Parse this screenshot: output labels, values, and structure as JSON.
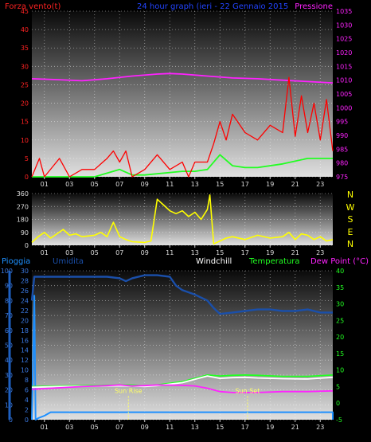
{
  "chart_data": [
    {
      "type": "line",
      "title": "24 hour graph (ieri - 22 Gennaio 2015",
      "left_label": "Forza vento(t)",
      "right_label": "Pressione",
      "left_ylim": [
        0,
        45
      ],
      "left_ticks": [
        0,
        5,
        10,
        15,
        20,
        25,
        30,
        35,
        40,
        45
      ],
      "right_ylim": [
        975,
        1035
      ],
      "right_ticks": [
        975,
        980,
        985,
        990,
        995,
        1000,
        1005,
        1010,
        1015,
        1020,
        1025,
        1030,
        1035
      ],
      "x_ticks": [
        "01",
        "03",
        "05",
        "07",
        "09",
        "11",
        "13",
        "15",
        "17",
        "19",
        "21",
        "23"
      ],
      "xlim": [
        0,
        24
      ],
      "grid": true,
      "series": [
        {
          "key": "pressure",
          "axis": "right",
          "color": "#ff22ff",
          "x": [
            0,
            2,
            4,
            6,
            8,
            10,
            11,
            12,
            14,
            16,
            18,
            20,
            22,
            24
          ],
          "y": [
            1010.5,
            1010.2,
            1009.8,
            1010.5,
            1011.5,
            1012.2,
            1012.4,
            1012.2,
            1011.5,
            1010.8,
            1010.5,
            1010,
            1009.5,
            1009
          ]
        },
        {
          "key": "wind_avg",
          "axis": "left",
          "color": "#22ff22",
          "x": [
            0,
            5,
            6,
            7,
            8,
            9,
            12,
            13,
            14,
            15,
            16,
            17,
            18,
            20,
            22,
            24
          ],
          "y": [
            0,
            0,
            1,
            2,
            0.5,
            0.5,
            1.5,
            1.5,
            2,
            6,
            3,
            2.5,
            2.5,
            3.5,
            5,
            5
          ]
        },
        {
          "key": "wind_gust",
          "axis": "left",
          "color": "#ff0000",
          "x": [
            0,
            0.6,
            1,
            2.2,
            3,
            4,
            5,
            6,
            6.5,
            7,
            7.5,
            8,
            9,
            10,
            11,
            12,
            12.5,
            13,
            14,
            14.5,
            15,
            15.5,
            16,
            17,
            18,
            19,
            20,
            20.5,
            21,
            21.5,
            22,
            22.5,
            23,
            23.5,
            24
          ],
          "y": [
            0,
            5,
            0,
            5,
            0,
            2,
            2,
            5,
            7,
            4,
            7,
            0,
            2,
            6,
            2,
            4,
            0,
            4,
            4,
            9,
            15,
            10,
            17,
            12,
            10,
            14,
            12,
            27,
            11,
            22,
            12,
            20,
            10,
            21,
            7
          ]
        }
      ]
    },
    {
      "type": "line",
      "title": "",
      "ylim": [
        0,
        360
      ],
      "y_ticks": [
        0,
        90,
        180,
        270,
        360
      ],
      "compass": [
        "N",
        "W",
        "S",
        "E",
        "N"
      ],
      "x_ticks": [
        "01",
        "03",
        "05",
        "07",
        "09",
        "11",
        "13",
        "15",
        "17",
        "19",
        "21",
        "23"
      ],
      "xlim": [
        0,
        24
      ],
      "grid": true,
      "series": [
        {
          "key": "wind_direction",
          "color": "#ffff00",
          "x": [
            0,
            0.5,
            1,
            1.5,
            2,
            2.5,
            3,
            3.5,
            4,
            5,
            5.5,
            6,
            6.5,
            7,
            7.5,
            8,
            9,
            9.5,
            10,
            10.5,
            11,
            11.5,
            12,
            12.5,
            13,
            13.5,
            14,
            14.2,
            14.5,
            15,
            15.5,
            16,
            17,
            18,
            19,
            20,
            20.5,
            21,
            21.5,
            22,
            22.5,
            23,
            23.5,
            24
          ],
          "y": [
            20,
            60,
            90,
            50,
            80,
            110,
            70,
            80,
            60,
            70,
            90,
            60,
            160,
            60,
            40,
            25,
            20,
            30,
            320,
            280,
            240,
            220,
            240,
            200,
            230,
            180,
            250,
            350,
            10,
            30,
            50,
            60,
            40,
            70,
            50,
            60,
            90,
            40,
            80,
            70,
            40,
            60,
            30,
            40
          ]
        }
      ]
    },
    {
      "type": "line",
      "title": "",
      "labels": {
        "pioggia": "Pioggia",
        "umidita": "Umidita",
        "windchill": "Windchill",
        "temperatura": "Temperatura",
        "dewpoint": "Dew Point (°C)"
      },
      "left_a_ylim": [
        0,
        100
      ],
      "left_a_ticks": [
        0,
        10,
        20,
        30,
        40,
        50,
        60,
        70,
        80,
        90,
        100
      ],
      "left_b_ylim": [
        0,
        30
      ],
      "left_b_ticks": [
        0,
        2,
        4,
        6,
        8,
        10,
        12,
        14,
        16,
        18,
        20,
        22,
        24,
        26,
        28,
        30
      ],
      "right_ylim": [
        -5,
        40
      ],
      "right_ticks": [
        -5,
        0,
        5,
        10,
        15,
        20,
        25,
        30,
        35,
        40
      ],
      "x_ticks": [
        "01",
        "03",
        "05",
        "07",
        "09",
        "11",
        "13",
        "15",
        "17",
        "19",
        "21",
        "23"
      ],
      "xlim": [
        0,
        24
      ],
      "grid": true,
      "annotations": [
        {
          "x": 7.7,
          "y_frac": 0.82,
          "text": "Sun Rise",
          "color": "#ffff66"
        },
        {
          "x": 17.2,
          "y_frac": 0.82,
          "text": "Sun Set",
          "color": "#ffff66"
        }
      ],
      "series": [
        {
          "key": "humidity",
          "axis": "left_a",
          "color": "#1a4faa",
          "x": [
            0,
            0.2,
            1,
            2,
            4,
            6,
            7,
            7.5,
            8,
            9,
            10,
            11,
            11.5,
            12,
            13,
            14,
            14.5,
            15,
            16,
            17,
            18,
            19,
            20,
            21,
            22,
            23,
            24
          ],
          "y": [
            80,
            96,
            96,
            96,
            96,
            96,
            95,
            93,
            95,
            97,
            97,
            96,
            90,
            87,
            84,
            80,
            75,
            71,
            72,
            73,
            74,
            74,
            73,
            73,
            74,
            72,
            72
          ]
        },
        {
          "key": "rain",
          "axis": "left_b",
          "color": "#1e90ff",
          "x": [
            0,
            0.2,
            0.3,
            0.5,
            1,
            1.5,
            2,
            10,
            24,
            24
          ],
          "y": [
            0,
            25,
            0,
            0.3,
            0.8,
            1.5,
            1.5,
            1.5,
            1.5,
            0
          ]
        },
        {
          "key": "temperature",
          "axis": "right",
          "color": "#22ff22",
          "x": [
            0,
            2,
            4,
            6,
            8,
            9,
            10,
            12,
            13,
            14,
            15,
            16,
            17,
            18,
            20,
            22,
            24
          ],
          "y": [
            5,
            5.2,
            5.3,
            5.4,
            5.5,
            5.2,
            5.5,
            6.5,
            7.5,
            8.5,
            8.2,
            8.4,
            8.5,
            8.4,
            8.1,
            8.1,
            8.5
          ]
        },
        {
          "key": "windchill",
          "axis": "right",
          "color": "#ffffff",
          "x": [
            0,
            2,
            4,
            6,
            8,
            9,
            10,
            12,
            13,
            14,
            15,
            16,
            17,
            18,
            20,
            22,
            24
          ],
          "y": [
            4.8,
            5,
            5.1,
            5.2,
            5.2,
            5,
            5.3,
            6.2,
            7.2,
            8.2,
            7.5,
            7.7,
            7.8,
            7.6,
            7.4,
            7.3,
            7.8
          ]
        },
        {
          "key": "dewpoint",
          "axis": "right",
          "color": "#ff22ff",
          "x": [
            0,
            2,
            4,
            6,
            7,
            8,
            9,
            10,
            12,
            13,
            14,
            15,
            16,
            18,
            20,
            22,
            24
          ],
          "y": [
            4.2,
            4.6,
            5,
            5.3,
            5.5,
            5.2,
            5.3,
            5.5,
            5.4,
            5.2,
            4.5,
            3.5,
            3.2,
            3.2,
            3.5,
            3.5,
            3.7
          ]
        }
      ]
    }
  ]
}
